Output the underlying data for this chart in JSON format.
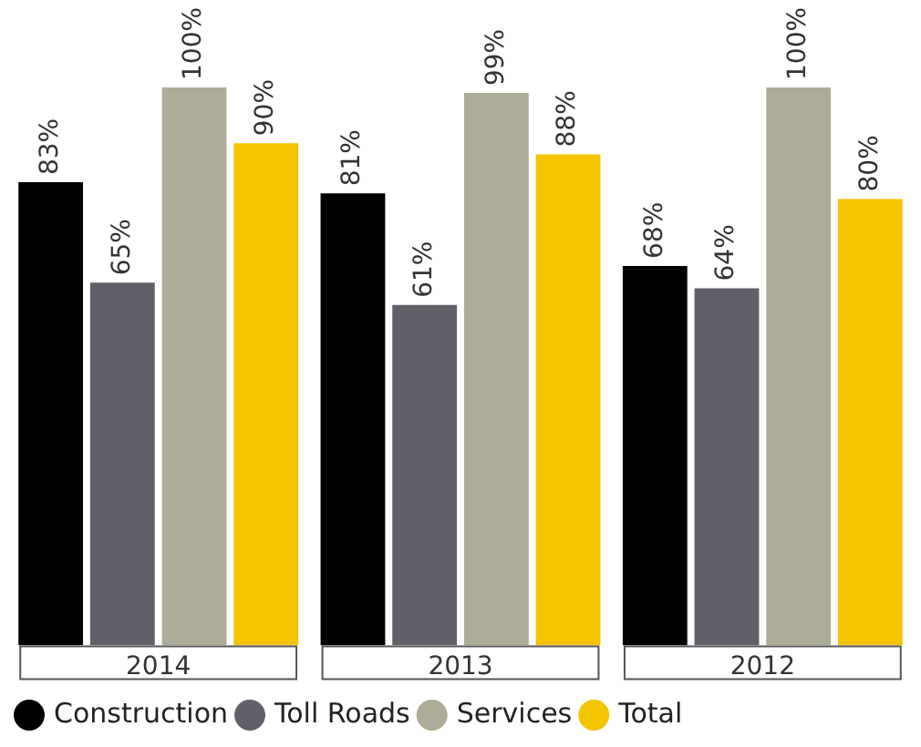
{
  "chart_data": {
    "type": "bar",
    "categories": [
      "2014",
      "2013",
      "2012"
    ],
    "series": [
      {
        "name": "Construction",
        "color": "#000000",
        "values": [
          83,
          81,
          68
        ],
        "value_labels": [
          "83%",
          "81%",
          "68%"
        ]
      },
      {
        "name": "Toll Roads",
        "color": "#5f6068",
        "values": [
          65,
          61,
          64
        ],
        "value_labels": [
          "65%",
          "61%",
          "64%"
        ]
      },
      {
        "name": "Services",
        "color": "#acac98",
        "values": [
          100,
          99,
          100
        ],
        "value_labels": [
          "100%",
          "99%",
          "100%"
        ]
      },
      {
        "name": "Total",
        "color": "#f5c400",
        "values": [
          90,
          88,
          80
        ],
        "value_labels": [
          "90%",
          "88%",
          "80%"
        ]
      }
    ],
    "legend": "bottom"
  }
}
